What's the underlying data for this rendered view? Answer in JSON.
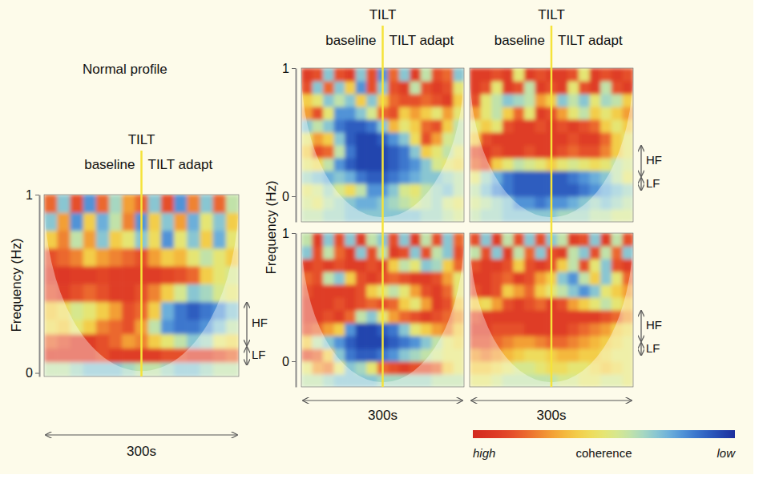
{
  "chart_data": [
    {
      "type": "heatmap",
      "subtitle": "Normal profile",
      "title": "TILT",
      "segments": [
        "baseline",
        "TILT adapt"
      ],
      "event_x": 150,
      "y_label": "Frequency (Hz)",
      "x_label": "300s",
      "xlim": [
        0,
        300
      ],
      "ylim": [
        -0.02,
        1
      ],
      "yticks": [
        0,
        1
      ],
      "tick_labels": "y",
      "bands": [
        {
          "label": "HF",
          "range": [
            0.15,
            0.4
          ]
        },
        {
          "label": "LF",
          "range": [
            0.04,
            0.15
          ]
        }
      ],
      "x_bins": [
        0,
        20,
        40,
        60,
        80,
        100,
        120,
        140,
        160,
        180,
        200,
        220,
        240,
        260,
        280,
        300
      ],
      "y_bins": [
        -0.02,
        0.06,
        0.14,
        0.22,
        0.3,
        0.4,
        0.5,
        0.6,
        0.7,
        0.8,
        0.9,
        1
      ],
      "z": [
        [
          0.4,
          0.4,
          0.35,
          0.3,
          0.3,
          0.3,
          0.35,
          0.4,
          0.4,
          0.35,
          0.3,
          0.3,
          0.35,
          0.4,
          0.4
        ],
        [
          0.9,
          0.9,
          0.9,
          0.9,
          0.85,
          0.9,
          0.9,
          0.9,
          0.9,
          0.85,
          0.85,
          0.9,
          0.9,
          0.85,
          0.8
        ],
        [
          0.8,
          0.85,
          0.9,
          0.9,
          0.85,
          0.8,
          0.7,
          0.75,
          0.6,
          0.5,
          0.4,
          0.3,
          0.35,
          0.5,
          0.55
        ],
        [
          0.55,
          0.6,
          0.5,
          0.6,
          0.75,
          0.8,
          0.85,
          0.7,
          0.4,
          0.2,
          0.15,
          0.15,
          0.2,
          0.3,
          0.4
        ],
        [
          0.6,
          0.55,
          0.45,
          0.5,
          0.6,
          0.7,
          0.85,
          0.8,
          0.6,
          0.25,
          0.15,
          0.1,
          0.15,
          0.2,
          0.3
        ],
        [
          0.85,
          0.9,
          0.85,
          0.8,
          0.85,
          0.9,
          0.9,
          0.85,
          0.75,
          0.6,
          0.45,
          0.3,
          0.35,
          0.45,
          0.5
        ],
        [
          0.9,
          0.92,
          0.9,
          0.9,
          0.88,
          0.9,
          0.9,
          0.9,
          0.9,
          0.88,
          0.85,
          0.8,
          0.6,
          0.5,
          0.45
        ],
        [
          0.85,
          0.8,
          0.75,
          0.6,
          0.7,
          0.75,
          0.8,
          0.85,
          0.7,
          0.6,
          0.65,
          0.5,
          0.4,
          0.5,
          0.6
        ],
        [
          0.6,
          0.75,
          0.4,
          0.7,
          0.3,
          0.6,
          0.5,
          0.3,
          0.55,
          0.2,
          0.5,
          0.3,
          0.6,
          0.25,
          0.5
        ],
        [
          0.3,
          0.7,
          0.2,
          0.6,
          0.25,
          0.4,
          0.75,
          0.2,
          0.6,
          0.3,
          0.7,
          0.25,
          0.5,
          0.3,
          0.6
        ],
        [
          0.8,
          0.3,
          0.85,
          0.2,
          0.8,
          0.35,
          0.7,
          0.8,
          0.3,
          0.85,
          0.2,
          0.75,
          0.3,
          0.8,
          0.4
        ]
      ]
    },
    {
      "type": "heatmap",
      "title": "TILT",
      "segments": [
        "baseline",
        "TILT adapt"
      ],
      "event_x": 150,
      "y_label": "Frequency (Hz)",
      "xlim": [
        0,
        300
      ],
      "ylim": [
        -0.2,
        1
      ],
      "yticks": [
        0,
        1
      ],
      "tick_labels": "y",
      "x_bins": [
        0,
        20,
        40,
        60,
        80,
        100,
        120,
        140,
        160,
        180,
        200,
        220,
        240,
        260,
        280,
        300
      ],
      "y_bins": [
        -0.2,
        -0.1,
        0,
        0.1,
        0.2,
        0.3,
        0.4,
        0.5,
        0.6,
        0.7,
        0.8,
        0.9,
        1
      ],
      "z": [
        [
          0.4,
          0.4,
          0.35,
          0.35,
          0.3,
          0.3,
          0.3,
          0.3,
          0.3,
          0.3,
          0.3,
          0.35,
          0.35,
          0.4,
          0.45
        ],
        [
          0.45,
          0.5,
          0.4,
          0.35,
          0.3,
          0.25,
          0.25,
          0.3,
          0.35,
          0.4,
          0.45,
          0.4,
          0.35,
          0.45,
          0.5
        ],
        [
          0.5,
          0.45,
          0.35,
          0.45,
          0.55,
          0.4,
          0.2,
          0.2,
          0.3,
          0.45,
          0.5,
          0.4,
          0.35,
          0.3,
          0.4
        ],
        [
          0.35,
          0.3,
          0.25,
          0.3,
          0.25,
          0.15,
          0.1,
          0.1,
          0.15,
          0.2,
          0.25,
          0.3,
          0.3,
          0.35,
          0.4
        ],
        [
          0.5,
          0.55,
          0.4,
          0.2,
          0.1,
          0.05,
          0.05,
          0.05,
          0.1,
          0.15,
          0.2,
          0.3,
          0.45,
          0.5,
          0.55
        ],
        [
          0.6,
          0.85,
          0.8,
          0.4,
          0.15,
          0.05,
          0.05,
          0.05,
          0.1,
          0.15,
          0.3,
          0.6,
          0.5,
          0.4,
          0.5
        ],
        [
          0.5,
          0.7,
          0.6,
          0.3,
          0.1,
          0.05,
          0.05,
          0.1,
          0.2,
          0.3,
          0.55,
          0.85,
          0.7,
          0.45,
          0.4
        ],
        [
          0.3,
          0.4,
          0.3,
          0.15,
          0.1,
          0.1,
          0.15,
          0.3,
          0.65,
          0.5,
          0.6,
          0.8,
          0.85,
          0.6,
          0.4
        ],
        [
          0.7,
          0.85,
          0.5,
          0.2,
          0.2,
          0.3,
          0.45,
          0.8,
          0.85,
          0.6,
          0.7,
          0.6,
          0.5,
          0.7,
          0.5
        ],
        [
          0.6,
          0.5,
          0.3,
          0.4,
          0.3,
          0.6,
          0.3,
          0.6,
          0.8,
          0.85,
          0.85,
          0.8,
          0.85,
          0.9,
          0.6
        ],
        [
          0.85,
          0.3,
          0.8,
          0.3,
          0.6,
          0.2,
          0.85,
          0.3,
          0.85,
          0.9,
          0.4,
          0.85,
          0.9,
          0.85,
          0.5
        ],
        [
          0.9,
          0.85,
          0.3,
          0.85,
          0.9,
          0.3,
          0.85,
          0.2,
          0.8,
          0.3,
          0.9,
          0.4,
          0.85,
          0.8,
          0.3
        ]
      ]
    },
    {
      "type": "heatmap",
      "title": "TILT",
      "segments": [
        "baseline",
        "TILT adapt"
      ],
      "event_x": 150,
      "xlim": [
        0,
        300
      ],
      "ylim": [
        -0.2,
        1
      ],
      "tick_labels": false,
      "bands": [
        {
          "label": "HF",
          "range": [
            0.15,
            0.4
          ]
        },
        {
          "label": "LF",
          "range": [
            0.04,
            0.15
          ]
        }
      ],
      "x_bins": [
        0,
        20,
        40,
        60,
        80,
        100,
        120,
        140,
        160,
        180,
        200,
        220,
        240,
        260,
        280,
        300
      ],
      "y_bins": [
        -0.2,
        -0.1,
        0,
        0.1,
        0.2,
        0.3,
        0.4,
        0.5,
        0.6,
        0.7,
        0.8,
        0.9,
        1
      ],
      "z": [
        [
          0.4,
          0.35,
          0.35,
          0.3,
          0.3,
          0.3,
          0.3,
          0.3,
          0.35,
          0.35,
          0.35,
          0.4,
          0.4,
          0.45,
          0.45
        ],
        [
          0.45,
          0.4,
          0.35,
          0.3,
          0.2,
          0.2,
          0.15,
          0.2,
          0.2,
          0.25,
          0.3,
          0.35,
          0.3,
          0.35,
          0.4
        ],
        [
          0.4,
          0.3,
          0.2,
          0.15,
          0.1,
          0.1,
          0.1,
          0.1,
          0.1,
          0.1,
          0.15,
          0.2,
          0.25,
          0.3,
          0.35
        ],
        [
          0.5,
          0.35,
          0.25,
          0.15,
          0.1,
          0.1,
          0.1,
          0.1,
          0.1,
          0.15,
          0.2,
          0.25,
          0.3,
          0.4,
          0.5
        ],
        [
          0.8,
          0.85,
          0.6,
          0.5,
          0.4,
          0.45,
          0.5,
          0.6,
          0.5,
          0.45,
          0.5,
          0.55,
          0.5,
          0.4,
          0.45
        ],
        [
          0.85,
          0.9,
          0.85,
          0.9,
          0.9,
          0.85,
          0.9,
          0.9,
          0.85,
          0.8,
          0.85,
          0.85,
          0.75,
          0.6,
          0.5
        ],
        [
          0.6,
          0.85,
          0.9,
          0.9,
          0.9,
          0.9,
          0.9,
          0.9,
          0.9,
          0.85,
          0.9,
          0.9,
          0.8,
          0.6,
          0.5
        ],
        [
          0.5,
          0.6,
          0.5,
          0.85,
          0.9,
          0.9,
          0.85,
          0.9,
          0.85,
          0.9,
          0.85,
          0.8,
          0.6,
          0.5,
          0.6
        ],
        [
          0.7,
          0.5,
          0.4,
          0.6,
          0.8,
          0.5,
          0.9,
          0.85,
          0.7,
          0.5,
          0.4,
          0.6,
          0.5,
          0.6,
          0.7
        ],
        [
          0.85,
          0.5,
          0.4,
          0.3,
          0.35,
          0.4,
          0.7,
          0.6,
          0.3,
          0.4,
          0.3,
          0.5,
          0.35,
          0.4,
          0.6
        ],
        [
          0.9,
          0.85,
          0.5,
          0.9,
          0.85,
          0.4,
          0.9,
          0.85,
          0.9,
          0.5,
          0.85,
          0.9,
          0.4,
          0.85,
          0.9
        ],
        [
          0.9,
          0.9,
          0.85,
          0.9,
          0.5,
          0.9,
          0.85,
          0.9,
          0.9,
          0.85,
          0.5,
          0.9,
          0.85,
          0.9,
          0.85
        ]
      ]
    },
    {
      "type": "heatmap",
      "event_x": 150,
      "x_label": "300s",
      "xlim": [
        0,
        300
      ],
      "ylim": [
        -0.2,
        1
      ],
      "yticks": [
        0,
        1
      ],
      "tick_labels": "y",
      "x_bins": [
        0,
        20,
        40,
        60,
        80,
        100,
        120,
        140,
        160,
        180,
        200,
        220,
        240,
        260,
        280,
        300
      ],
      "y_bins": [
        -0.2,
        -0.1,
        0,
        0.1,
        0.2,
        0.3,
        0.4,
        0.5,
        0.6,
        0.7,
        0.8,
        0.9,
        1
      ],
      "z": [
        [
          0.4,
          0.4,
          0.35,
          0.3,
          0.3,
          0.3,
          0.3,
          0.35,
          0.35,
          0.35,
          0.35,
          0.35,
          0.4,
          0.4,
          0.4
        ],
        [
          0.5,
          0.7,
          0.75,
          0.5,
          0.3,
          0.35,
          0.5,
          0.8,
          0.85,
          0.9,
          0.85,
          0.85,
          0.8,
          0.6,
          0.5
        ],
        [
          0.85,
          0.8,
          0.6,
          0.3,
          0.15,
          0.1,
          0.1,
          0.15,
          0.2,
          0.3,
          0.35,
          0.4,
          0.45,
          0.5,
          0.5
        ],
        [
          0.6,
          0.4,
          0.3,
          0.2,
          0.1,
          0.05,
          0.05,
          0.05,
          0.1,
          0.15,
          0.2,
          0.3,
          0.4,
          0.5,
          0.55
        ],
        [
          0.85,
          0.8,
          0.7,
          0.6,
          0.2,
          0.05,
          0.05,
          0.1,
          0.15,
          0.3,
          0.5,
          0.6,
          0.7,
          0.75,
          0.6
        ],
        [
          0.9,
          0.9,
          0.85,
          0.9,
          0.8,
          0.4,
          0.3,
          0.5,
          0.7,
          0.8,
          0.85,
          0.9,
          0.85,
          0.8,
          0.7
        ],
        [
          0.9,
          0.9,
          0.9,
          0.85,
          0.9,
          0.85,
          0.8,
          0.85,
          0.8,
          0.6,
          0.5,
          0.7,
          0.9,
          0.85,
          0.6
        ],
        [
          0.85,
          0.9,
          0.9,
          0.9,
          0.9,
          0.85,
          0.6,
          0.5,
          0.4,
          0.5,
          0.7,
          0.85,
          0.9,
          0.8,
          0.5
        ],
        [
          0.8,
          0.85,
          0.4,
          0.3,
          0.6,
          0.85,
          0.9,
          0.85,
          0.8,
          0.85,
          0.9,
          0.9,
          0.85,
          0.7,
          0.5
        ],
        [
          0.9,
          0.85,
          0.9,
          0.85,
          0.9,
          0.9,
          0.85,
          0.9,
          0.6,
          0.4,
          0.5,
          0.3,
          0.35,
          0.6,
          0.8
        ],
        [
          0.3,
          0.85,
          0.4,
          0.8,
          0.9,
          0.3,
          0.85,
          0.4,
          0.9,
          0.85,
          0.3,
          0.85,
          0.4,
          0.3,
          0.85
        ],
        [
          0.4,
          0.9,
          0.3,
          0.85,
          0.3,
          0.9,
          0.4,
          0.3,
          0.85,
          0.3,
          0.9,
          0.4,
          0.85,
          0.3,
          0.8
        ]
      ]
    },
    {
      "type": "heatmap",
      "event_x": 150,
      "x_label": "300s",
      "xlim": [
        0,
        300
      ],
      "ylim": [
        -0.2,
        1
      ],
      "tick_labels": false,
      "bands": [
        {
          "label": "HF",
          "range": [
            0.15,
            0.4
          ]
        },
        {
          "label": "LF",
          "range": [
            0.04,
            0.15
          ]
        }
      ],
      "x_bins": [
        0,
        20,
        40,
        60,
        80,
        100,
        120,
        140,
        160,
        180,
        200,
        220,
        240,
        260,
        280,
        300
      ],
      "y_bins": [
        -0.2,
        -0.1,
        0,
        0.1,
        0.2,
        0.3,
        0.4,
        0.5,
        0.6,
        0.7,
        0.8,
        0.9,
        1
      ],
      "z": [
        [
          0.5,
          0.5,
          0.45,
          0.4,
          0.4,
          0.4,
          0.4,
          0.4,
          0.45,
          0.45,
          0.5,
          0.5,
          0.45,
          0.45,
          0.5
        ],
        [
          0.6,
          0.6,
          0.55,
          0.5,
          0.45,
          0.45,
          0.5,
          0.55,
          0.55,
          0.5,
          0.5,
          0.55,
          0.6,
          0.55,
          0.5
        ],
        [
          0.7,
          0.75,
          0.7,
          0.65,
          0.6,
          0.55,
          0.55,
          0.6,
          0.65,
          0.65,
          0.6,
          0.6,
          0.55,
          0.5,
          0.5
        ],
        [
          0.85,
          0.85,
          0.8,
          0.75,
          0.7,
          0.7,
          0.75,
          0.8,
          0.8,
          0.75,
          0.7,
          0.65,
          0.6,
          0.55,
          0.5
        ],
        [
          0.9,
          0.9,
          0.85,
          0.85,
          0.85,
          0.9,
          0.9,
          0.9,
          0.9,
          0.85,
          0.8,
          0.75,
          0.7,
          0.6,
          0.55
        ],
        [
          0.85,
          0.9,
          0.9,
          0.9,
          0.9,
          0.9,
          0.9,
          0.9,
          0.9,
          0.9,
          0.9,
          0.9,
          0.85,
          0.8,
          0.7
        ],
        [
          0.6,
          0.55,
          0.7,
          0.85,
          0.9,
          0.85,
          0.8,
          0.9,
          0.85,
          0.7,
          0.6,
          0.5,
          0.4,
          0.5,
          0.6
        ],
        [
          0.85,
          0.9,
          0.85,
          0.6,
          0.7,
          0.8,
          0.6,
          0.5,
          0.4,
          0.3,
          0.2,
          0.3,
          0.5,
          0.6,
          0.7
        ],
        [
          0.9,
          0.9,
          0.85,
          0.8,
          0.9,
          0.85,
          0.7,
          0.6,
          0.3,
          0.2,
          0.4,
          0.6,
          0.3,
          0.5,
          0.8
        ],
        [
          0.85,
          0.9,
          0.9,
          0.85,
          0.6,
          0.85,
          0.9,
          0.85,
          0.6,
          0.4,
          0.85,
          0.5,
          0.3,
          0.85,
          0.9
        ],
        [
          0.4,
          0.85,
          0.3,
          0.9,
          0.4,
          0.8,
          0.3,
          0.85,
          0.9,
          0.4,
          0.3,
          0.85,
          0.4,
          0.8,
          0.3
        ],
        [
          0.85,
          0.3,
          0.9,
          0.4,
          0.85,
          0.3,
          0.85,
          0.3,
          0.4,
          0.9,
          0.85,
          0.3,
          0.9,
          0.4,
          0.85
        ]
      ]
    }
  ],
  "colorbar": {
    "label": "coherence",
    "range": [
      1,
      0
    ],
    "ticks": [
      {
        "value": 1,
        "label": "high"
      },
      {
        "value": 0,
        "label": "low"
      }
    ]
  }
}
